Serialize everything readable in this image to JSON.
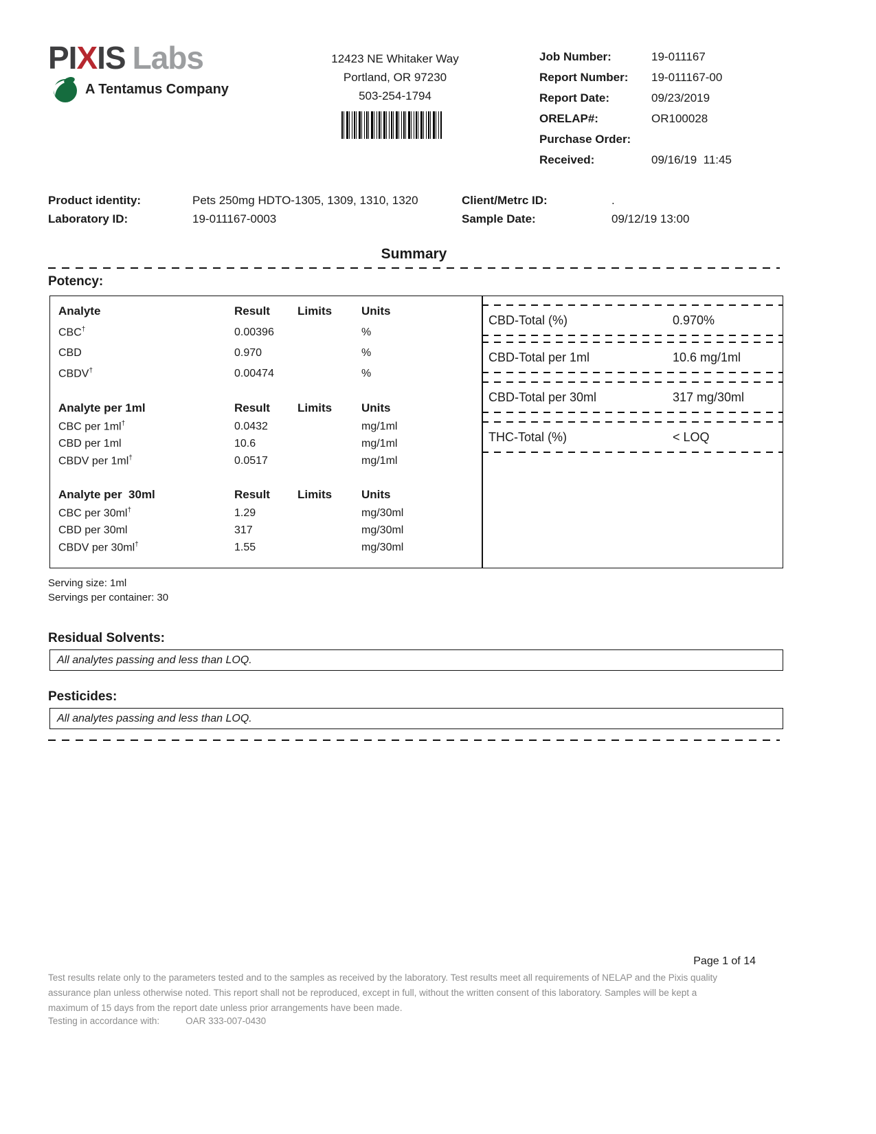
{
  "header": {
    "logo": {
      "pi": "PI",
      "x": "X",
      "is": "IS",
      "labs": "Labs",
      "tagline": "A Tentamus Company",
      "brand_dark": "#3e3e40",
      "brand_red": "#b6282f",
      "brand_gray": "#9c9ea0",
      "brand_green": "#156c3e"
    },
    "address_lines": [
      "12423 NE Whitaker Way",
      "Portland, OR 97230",
      "503-254-1794"
    ],
    "info": [
      {
        "label": "Job Number:",
        "value": "19-011167"
      },
      {
        "label": "Report Number:",
        "value": "19-011167-00"
      },
      {
        "label": "Report Date:",
        "value": "09/23/2019"
      },
      {
        "label": "ORELAP#:",
        "value": "OR100028"
      },
      {
        "label": "Purchase Order:",
        "value": ""
      },
      {
        "label": "Received:",
        "value": "09/16/19  11:45"
      }
    ]
  },
  "sample": {
    "product_identity_label": "Product identity:",
    "product_identity": "Pets 250mg HDTO-1305, 1309, 1310, 1320",
    "laboratory_id_label": "Laboratory ID:",
    "laboratory_id": "19-011167-0003",
    "client_metrc_label": "Client/Metrc ID:",
    "client_metrc": ".",
    "sample_date_label": "Sample Date:",
    "sample_date": "09/12/19 13:00"
  },
  "summary_title": "Summary",
  "potency": {
    "heading": "Potency:",
    "sections": [
      {
        "header": [
          "Analyte",
          "Result",
          "Limits",
          "Units"
        ],
        "rows": [
          {
            "name": "CBC",
            "sup": "†",
            "result": "0.00396",
            "limits": "",
            "units": "%"
          },
          {
            "name": "CBD",
            "sup": "",
            "result": "0.970",
            "limits": "",
            "units": "%"
          },
          {
            "name": "CBDV",
            "sup": "†",
            "result": "0.00474",
            "limits": "",
            "units": "%"
          }
        ]
      },
      {
        "header": [
          "Analyte per 1ml",
          "Result",
          "Limits",
          "Units"
        ],
        "rows": [
          {
            "name": "CBC per 1ml",
            "sup": "†",
            "result": "0.0432",
            "limits": "",
            "units": "mg/1ml"
          },
          {
            "name": "CBD per 1ml",
            "sup": "",
            "result": "10.6",
            "limits": "",
            "units": "mg/1ml"
          },
          {
            "name": "CBDV per 1ml",
            "sup": "†",
            "result": "0.0517",
            "limits": "",
            "units": "mg/1ml"
          }
        ]
      },
      {
        "header": [
          "Analyte per  30ml",
          "Result",
          "Limits",
          "Units"
        ],
        "rows": [
          {
            "name": "CBC per 30ml",
            "sup": "†",
            "result": "1.29",
            "limits": "",
            "units": "mg/30ml"
          },
          {
            "name": "CBD per 30ml",
            "sup": "",
            "result": "317",
            "limits": "",
            "units": "mg/30ml"
          },
          {
            "name": "CBDV per 30ml",
            "sup": "†",
            "result": "1.55",
            "limits": "",
            "units": "mg/30ml"
          }
        ]
      }
    ],
    "totals": [
      {
        "label": "CBD-Total (%)",
        "value": "0.970%"
      },
      {
        "label": "CBD-Total per 1ml",
        "value": "10.6 mg/1ml"
      },
      {
        "label": "CBD-Total per 30ml",
        "value": "317 mg/30ml"
      },
      {
        "label": "THC-Total (%)",
        "value": "< LOQ"
      }
    ]
  },
  "serving": {
    "size": "Serving size: 1ml",
    "per_container": "Servings per container: 30"
  },
  "result_sections": [
    {
      "heading": "Residual Solvents:",
      "note": "All analytes passing and less than LOQ."
    },
    {
      "heading": "Pesticides:",
      "note": "All analytes passing and less than LOQ."
    }
  ],
  "footer": {
    "page": "Page 1 of 14",
    "disclaimer": "Test results relate only to the parameters tested and to the samples as received by the laboratory. Test results meet all requirements of NELAP and the Pixis quality assurance plan unless otherwise noted. This report shall not be reproduced, except in full, without the written consent of this laboratory. Samples will be kept a maximum of 15 days from the report date unless prior arrangements have been made.",
    "testing_label": "Testing in accordance with:",
    "testing_value": "OAR 333-007-0430"
  }
}
